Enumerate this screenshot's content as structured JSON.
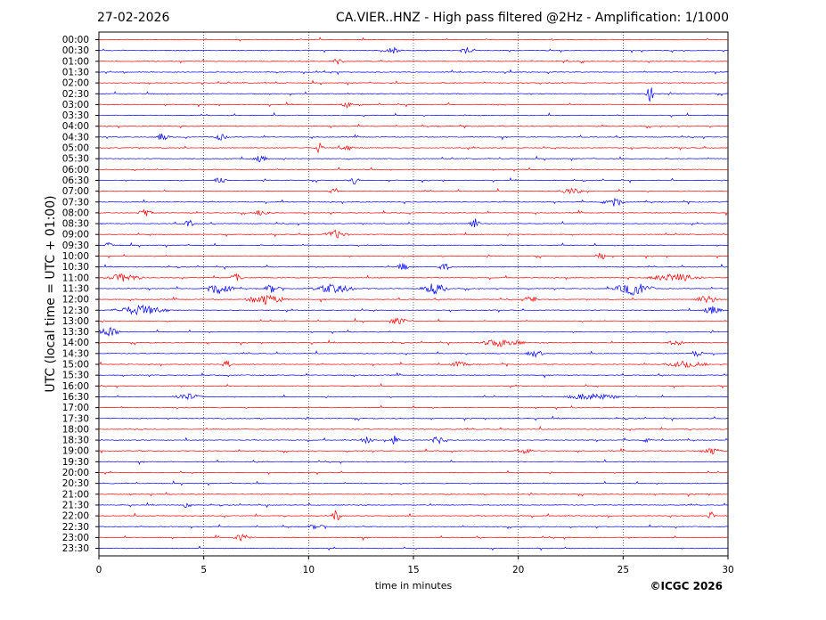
{
  "header": {
    "date": "27-02-2026",
    "title": "CA.VIER..HNZ - High pass filtered @2Hz - Amplification: 1/1000"
  },
  "footer": {
    "copyright": "©ICGC 2026"
  },
  "chart_data": {
    "type": "line",
    "title": "CA.VIER..HNZ - High pass filtered @2Hz - Amplification: 1/1000",
    "xlabel": "time in minutes",
    "ylabel": "UTC (local time = UTC + 01:00)",
    "xlim": [
      0,
      30
    ],
    "x_ticks": [
      0,
      5,
      10,
      15,
      20,
      25,
      30
    ],
    "vertical_grid": [
      5,
      10,
      15,
      20,
      25
    ],
    "grid_style": "dotted vertical lines at each 5 minutes",
    "row_labels": [
      "00:00",
      "00:30",
      "01:00",
      "01:30",
      "02:00",
      "02:30",
      "03:00",
      "03:30",
      "04:00",
      "04:30",
      "05:00",
      "05:30",
      "06:00",
      "06:30",
      "07:00",
      "07:30",
      "08:00",
      "08:30",
      "09:00",
      "09:30",
      "10:00",
      "10:30",
      "11:00",
      "11:30",
      "12:00",
      "12:30",
      "13:00",
      "13:30",
      "14:00",
      "14:30",
      "15:00",
      "15:30",
      "16:00",
      "16:30",
      "17:00",
      "17:30",
      "18:00",
      "18:30",
      "19:00",
      "19:30",
      "20:00",
      "20:30",
      "21:00",
      "21:30",
      "22:00",
      "22:30",
      "23:00",
      "23:30"
    ],
    "trace_colors": [
      "#ff0000",
      "#0000ff"
    ],
    "color_pattern": "alternating per row: 00:00 red, 00:30 blue, 01:00 red, ...",
    "events": [
      {
        "row": "00:30",
        "minute": 14.0,
        "amp": 0.25,
        "dur": 0.6
      },
      {
        "row": "00:30",
        "minute": 17.5,
        "amp": 0.3,
        "dur": 0.4
      },
      {
        "row": "01:00",
        "minute": 11.4,
        "amp": 0.3,
        "dur": 0.3
      },
      {
        "row": "02:30",
        "minute": 26.3,
        "amp": 0.7,
        "dur": 0.2
      },
      {
        "row": "03:00",
        "minute": 11.8,
        "amp": 0.25,
        "dur": 0.3
      },
      {
        "row": "04:30",
        "minute": 3.0,
        "amp": 0.3,
        "dur": 0.5
      },
      {
        "row": "04:30",
        "minute": 5.8,
        "amp": 0.25,
        "dur": 0.5
      },
      {
        "row": "05:00",
        "minute": 10.5,
        "amp": 0.5,
        "dur": 0.2
      },
      {
        "row": "05:00",
        "minute": 11.8,
        "amp": 0.2,
        "dur": 0.6
      },
      {
        "row": "05:30",
        "minute": 7.7,
        "amp": 0.25,
        "dur": 0.5
      },
      {
        "row": "06:30",
        "minute": 5.8,
        "amp": 0.25,
        "dur": 0.4
      },
      {
        "row": "06:30",
        "minute": 12.2,
        "amp": 0.3,
        "dur": 0.3
      },
      {
        "row": "07:00",
        "minute": 11.2,
        "amp": 0.35,
        "dur": 0.2
      },
      {
        "row": "07:00",
        "minute": 22.5,
        "amp": 0.25,
        "dur": 1.0
      },
      {
        "row": "07:30",
        "minute": 24.5,
        "amp": 0.45,
        "dur": 0.9
      },
      {
        "row": "08:00",
        "minute": 2.2,
        "amp": 0.3,
        "dur": 0.5
      },
      {
        "row": "08:00",
        "minute": 7.8,
        "amp": 0.25,
        "dur": 0.6
      },
      {
        "row": "08:30",
        "minute": 4.3,
        "amp": 0.35,
        "dur": 0.2
      },
      {
        "row": "08:30",
        "minute": 17.9,
        "amp": 0.55,
        "dur": 0.3
      },
      {
        "row": "09:00",
        "minute": 11.3,
        "amp": 0.35,
        "dur": 1.0
      },
      {
        "row": "09:30",
        "minute": 0.5,
        "amp": 0.35,
        "dur": 0.2
      },
      {
        "row": "10:00",
        "minute": 23.9,
        "amp": 0.7,
        "dur": 0.2
      },
      {
        "row": "10:30",
        "minute": 14.5,
        "amp": 0.35,
        "dur": 0.3
      },
      {
        "row": "10:30",
        "minute": 16.5,
        "amp": 0.3,
        "dur": 0.4
      },
      {
        "row": "11:00",
        "minute": 1.2,
        "amp": 0.35,
        "dur": 1.6
      },
      {
        "row": "11:00",
        "minute": 6.5,
        "amp": 0.35,
        "dur": 0.4
      },
      {
        "row": "11:00",
        "minute": 27.5,
        "amp": 0.35,
        "dur": 2.5
      },
      {
        "row": "11:30",
        "minute": 5.7,
        "amp": 0.45,
        "dur": 1.4
      },
      {
        "row": "11:30",
        "minute": 8.3,
        "amp": 0.45,
        "dur": 0.6
      },
      {
        "row": "11:30",
        "minute": 11.2,
        "amp": 0.4,
        "dur": 2.0
      },
      {
        "row": "11:30",
        "minute": 16.0,
        "amp": 0.5,
        "dur": 1.2
      },
      {
        "row": "11:30",
        "minute": 25.5,
        "amp": 0.6,
        "dur": 1.8
      },
      {
        "row": "12:00",
        "minute": 8.0,
        "amp": 0.45,
        "dur": 1.8
      },
      {
        "row": "12:00",
        "minute": 20.6,
        "amp": 0.35,
        "dur": 0.5
      },
      {
        "row": "12:00",
        "minute": 29.0,
        "amp": 0.35,
        "dur": 1.0
      },
      {
        "row": "12:30",
        "minute": 2.0,
        "amp": 0.45,
        "dur": 2.6
      },
      {
        "row": "12:30",
        "minute": 29.3,
        "amp": 0.35,
        "dur": 0.8
      },
      {
        "row": "13:00",
        "minute": 14.3,
        "amp": 0.35,
        "dur": 0.6
      },
      {
        "row": "13:30",
        "minute": 0.5,
        "amp": 0.45,
        "dur": 0.8
      },
      {
        "row": "14:00",
        "minute": 19.2,
        "amp": 0.35,
        "dur": 2.0
      },
      {
        "row": "14:00",
        "minute": 27.5,
        "amp": 0.25,
        "dur": 0.5
      },
      {
        "row": "14:30",
        "minute": 20.8,
        "amp": 0.3,
        "dur": 0.6
      },
      {
        "row": "14:30",
        "minute": 28.5,
        "amp": 0.25,
        "dur": 0.4
      },
      {
        "row": "15:00",
        "minute": 6.1,
        "amp": 0.35,
        "dur": 0.2
      },
      {
        "row": "15:00",
        "minute": 17.2,
        "amp": 0.25,
        "dur": 0.7
      },
      {
        "row": "15:00",
        "minute": 28.0,
        "amp": 0.25,
        "dur": 2.0
      },
      {
        "row": "16:30",
        "minute": 4.2,
        "amp": 0.3,
        "dur": 1.2
      },
      {
        "row": "16:30",
        "minute": 23.5,
        "amp": 0.3,
        "dur": 2.5
      },
      {
        "row": "18:30",
        "minute": 12.8,
        "amp": 0.3,
        "dur": 0.4
      },
      {
        "row": "18:30",
        "minute": 14.1,
        "amp": 0.5,
        "dur": 0.2
      },
      {
        "row": "18:30",
        "minute": 16.2,
        "amp": 0.35,
        "dur": 0.5
      },
      {
        "row": "18:30",
        "minute": 26.2,
        "amp": 0.3,
        "dur": 0.3
      },
      {
        "row": "19:00",
        "minute": 20.3,
        "amp": 0.25,
        "dur": 0.7
      },
      {
        "row": "19:00",
        "minute": 29.2,
        "amp": 0.3,
        "dur": 0.8
      },
      {
        "row": "21:30",
        "minute": 4.2,
        "amp": 0.5,
        "dur": 0.2
      },
      {
        "row": "22:00",
        "minute": 11.3,
        "amp": 0.65,
        "dur": 0.2
      },
      {
        "row": "22:00",
        "minute": 29.2,
        "amp": 0.35,
        "dur": 0.2
      },
      {
        "row": "22:30",
        "minute": 10.4,
        "amp": 0.25,
        "dur": 0.6
      },
      {
        "row": "23:00",
        "minute": 6.8,
        "amp": 0.25,
        "dur": 0.8
      }
    ]
  }
}
